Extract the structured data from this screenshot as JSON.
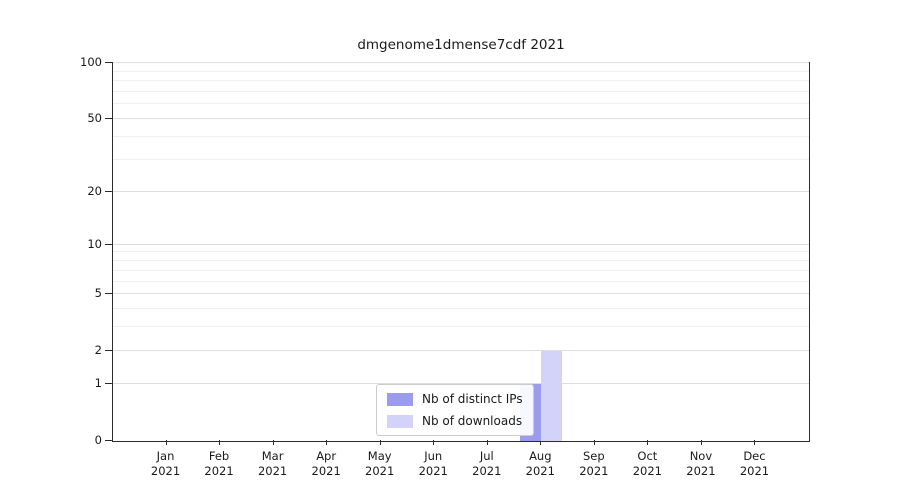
{
  "title": "dmgenome1dmense7cdf 2021",
  "chart_data": {
    "type": "bar",
    "title": "dmgenome1dmense7cdf 2021",
    "categories": [
      "Jan 2021",
      "Feb 2021",
      "Mar 2021",
      "Apr 2021",
      "May 2021",
      "Jun 2021",
      "Jul 2021",
      "Aug 2021",
      "Sep 2021",
      "Oct 2021",
      "Nov 2021",
      "Dec 2021"
    ],
    "series": [
      {
        "name": "Nb of distinct IPs",
        "color": "#9c9cee",
        "values": [
          0,
          0,
          0,
          0,
          0,
          0,
          0,
          1,
          0,
          0,
          0,
          0
        ]
      },
      {
        "name": "Nb of downloads",
        "color": "#d3d3f9",
        "values": [
          0,
          0,
          0,
          0,
          0,
          0,
          0,
          2,
          0,
          0,
          0,
          0
        ]
      }
    ],
    "yscale": "log-like",
    "ylim": [
      0,
      100
    ],
    "yticks": [
      0,
      1,
      2,
      5,
      10,
      20,
      50,
      100
    ],
    "yticks_minor": [
      3,
      4,
      6,
      7,
      8,
      9,
      30,
      40,
      60,
      70,
      80,
      90
    ],
    "grid": true,
    "legend_position": "lower center"
  }
}
